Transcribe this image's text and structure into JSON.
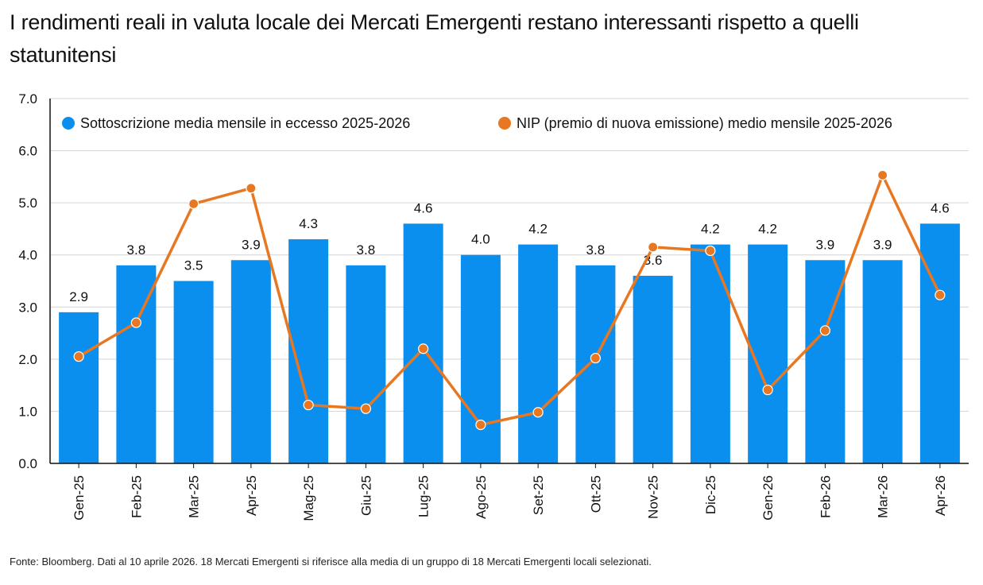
{
  "title": "I rendimenti reali in valuta locale dei Mercati Emergenti restano interessanti rispetto a quelli statunitensi",
  "source": "Fonte: Bloomberg. Dati al 10 aprile 2026. 18 Mercati Emergenti si riferisce alla media di un gruppo di 18 Mercati Emergenti locali selezionati.",
  "colors": {
    "bar": "#0A8FEF",
    "line": "#E87722",
    "grid": "#D4D4D4",
    "axis": "#111111"
  },
  "chart_data": {
    "type": "bar",
    "categories": [
      "Gen-25",
      "Feb-25",
      "Mar-25",
      "Apr-25",
      "Mag-25",
      "Giu-25",
      "Lug-25",
      "Ago-25",
      "Set-25",
      "Ott-25",
      "Nov-25",
      "Dic-25",
      "Gen-26",
      "Feb-26",
      "Mar-26",
      "Apr-26"
    ],
    "series": [
      {
        "name": "Sottoscrizione media mensile in eccesso  2025-2026",
        "type": "bar",
        "values": [
          2.9,
          3.8,
          3.5,
          3.9,
          4.3,
          3.8,
          4.6,
          4.0,
          4.2,
          3.8,
          3.6,
          4.2,
          4.2,
          3.9,
          3.9,
          4.6
        ],
        "labels": [
          "2.9",
          "3.8",
          "3.5",
          "3.9",
          "4.3",
          "3.8",
          "4.6",
          "4.0",
          "4.2",
          "3.8",
          "3.6",
          "4.2",
          "4.2",
          "3.9",
          "3.9",
          "4.6"
        ]
      },
      {
        "name": "NIP (premio di nuova emissione) medio mensile 2025-2026",
        "type": "line",
        "values": [
          2.05,
          2.7,
          4.98,
          5.28,
          1.12,
          1.05,
          2.2,
          0.74,
          0.98,
          2.02,
          4.15,
          4.08,
          1.41,
          2.55,
          5.53,
          3.23
        ]
      }
    ],
    "yticks": [
      "0.0",
      "1.0",
      "2.0",
      "3.0",
      "4.0",
      "5.0",
      "6.0",
      "7.0"
    ],
    "ylim": [
      0,
      7
    ],
    "grid": true,
    "legend": "top"
  }
}
